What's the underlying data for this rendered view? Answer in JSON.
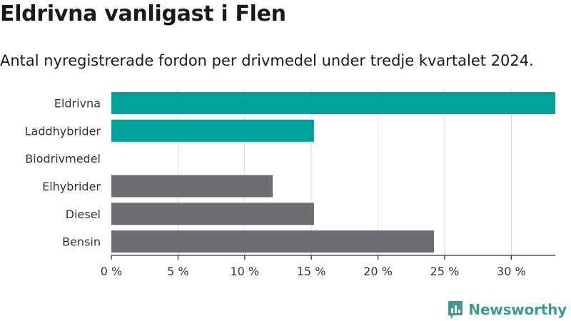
{
  "title": "Eldrivna vanligast i Flen",
  "subtitle": "Antal nyregistrerade fordon per drivmedel under tredje kvartalet 2024.",
  "brand": "Newsworthy",
  "colors": {
    "highlight": "#00a39a",
    "default": "#6d6d72",
    "grid": "#d9d9d9",
    "axis": "#333333",
    "brand": "#3d9a8f"
  },
  "chart_data": {
    "type": "bar",
    "orientation": "horizontal",
    "categories": [
      "Eldrivna",
      "Laddhybrider",
      "Biodrivmedel",
      "Elhybrider",
      "Diesel",
      "Bensin"
    ],
    "values": [
      33.3,
      15.2,
      0,
      12.1,
      15.2,
      24.2
    ],
    "bar_colors": [
      "highlight",
      "highlight",
      "default",
      "default",
      "default",
      "default"
    ],
    "xticks": [
      0,
      5,
      10,
      15,
      20,
      25,
      30
    ],
    "xtick_labels": [
      "0 %",
      "5 %",
      "10 %",
      "15 %",
      "20 %",
      "25 %",
      "30 %"
    ],
    "xlim": [
      0,
      33.3
    ],
    "grid": true
  }
}
